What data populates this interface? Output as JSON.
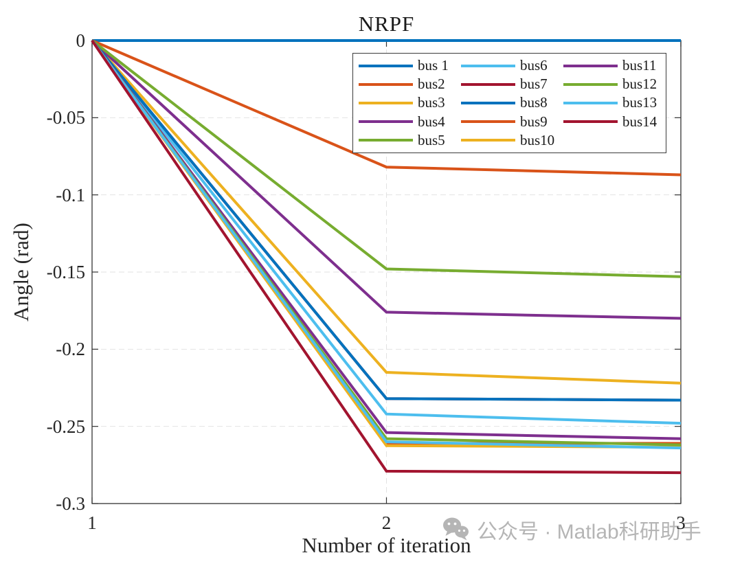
{
  "figure": {
    "background": "#ffffff"
  },
  "watermark": {
    "icon": "wechat-icon",
    "text": "公众号 · Matlab科研助手",
    "color": "#b5b5b5"
  },
  "chart_data": {
    "type": "line",
    "title": "NRPF",
    "xlabel": "Number of iteration",
    "ylabel": "Angle (rad)",
    "x": [
      1,
      2,
      3
    ],
    "xlim": [
      1,
      3
    ],
    "ylim": [
      -0.3,
      0
    ],
    "xticks": [
      {
        "v": 1,
        "label": "1"
      },
      {
        "v": 2,
        "label": "2"
      },
      {
        "v": 3,
        "label": "3"
      }
    ],
    "yticks": [
      {
        "v": 0,
        "label": "0"
      },
      {
        "v": -0.05,
        "label": "-0.05"
      },
      {
        "v": -0.1,
        "label": "-0.1"
      },
      {
        "v": -0.15,
        "label": "-0.15"
      },
      {
        "v": -0.2,
        "label": "-0.2"
      },
      {
        "v": -0.25,
        "label": "-0.25"
      },
      {
        "v": -0.3,
        "label": "-0.3"
      }
    ],
    "grid": {
      "show": true,
      "style": "dashed",
      "color": "#e2e2e2"
    },
    "axis_color": "#333333",
    "legend": {
      "position": "inside-top-center",
      "columns": 3,
      "rows": 5,
      "order": "column-major"
    },
    "series": [
      {
        "name": "bus 1",
        "color": "#0072BD",
        "values": [
          0,
          0,
          0
        ]
      },
      {
        "name": "bus2",
        "color": "#D95319",
        "values": [
          0,
          -0.082,
          -0.087
        ]
      },
      {
        "name": "bus3",
        "color": "#EDB120",
        "values": [
          0,
          -0.215,
          -0.222
        ]
      },
      {
        "name": "bus4",
        "color": "#7E2F8E",
        "values": [
          0,
          -0.176,
          -0.18
        ]
      },
      {
        "name": "bus5",
        "color": "#77AC30",
        "values": [
          0,
          -0.148,
          -0.153
        ]
      },
      {
        "name": "bus6",
        "color": "#4DBEEE",
        "values": [
          0,
          -0.242,
          -0.248
        ]
      },
      {
        "name": "bus7",
        "color": "#A2142F",
        "values": [
          0,
          -0.232,
          -0.233
        ]
      },
      {
        "name": "bus8",
        "color": "#0072BD",
        "values": [
          0,
          -0.232,
          -0.233
        ]
      },
      {
        "name": "bus9",
        "color": "#D95319",
        "values": [
          0,
          -0.261,
          -0.261
        ]
      },
      {
        "name": "bus10",
        "color": "#EDB120",
        "values": [
          0,
          -0.2625,
          -0.2635
        ]
      },
      {
        "name": "bus11",
        "color": "#7E2F8E",
        "values": [
          0,
          -0.254,
          -0.258
        ]
      },
      {
        "name": "bus12",
        "color": "#77AC30",
        "values": [
          0,
          -0.258,
          -0.262
        ]
      },
      {
        "name": "bus13",
        "color": "#4DBEEE",
        "values": [
          0,
          -0.26,
          -0.264
        ]
      },
      {
        "name": "bus14",
        "color": "#A2142F",
        "values": [
          0,
          -0.279,
          -0.28
        ]
      }
    ]
  }
}
